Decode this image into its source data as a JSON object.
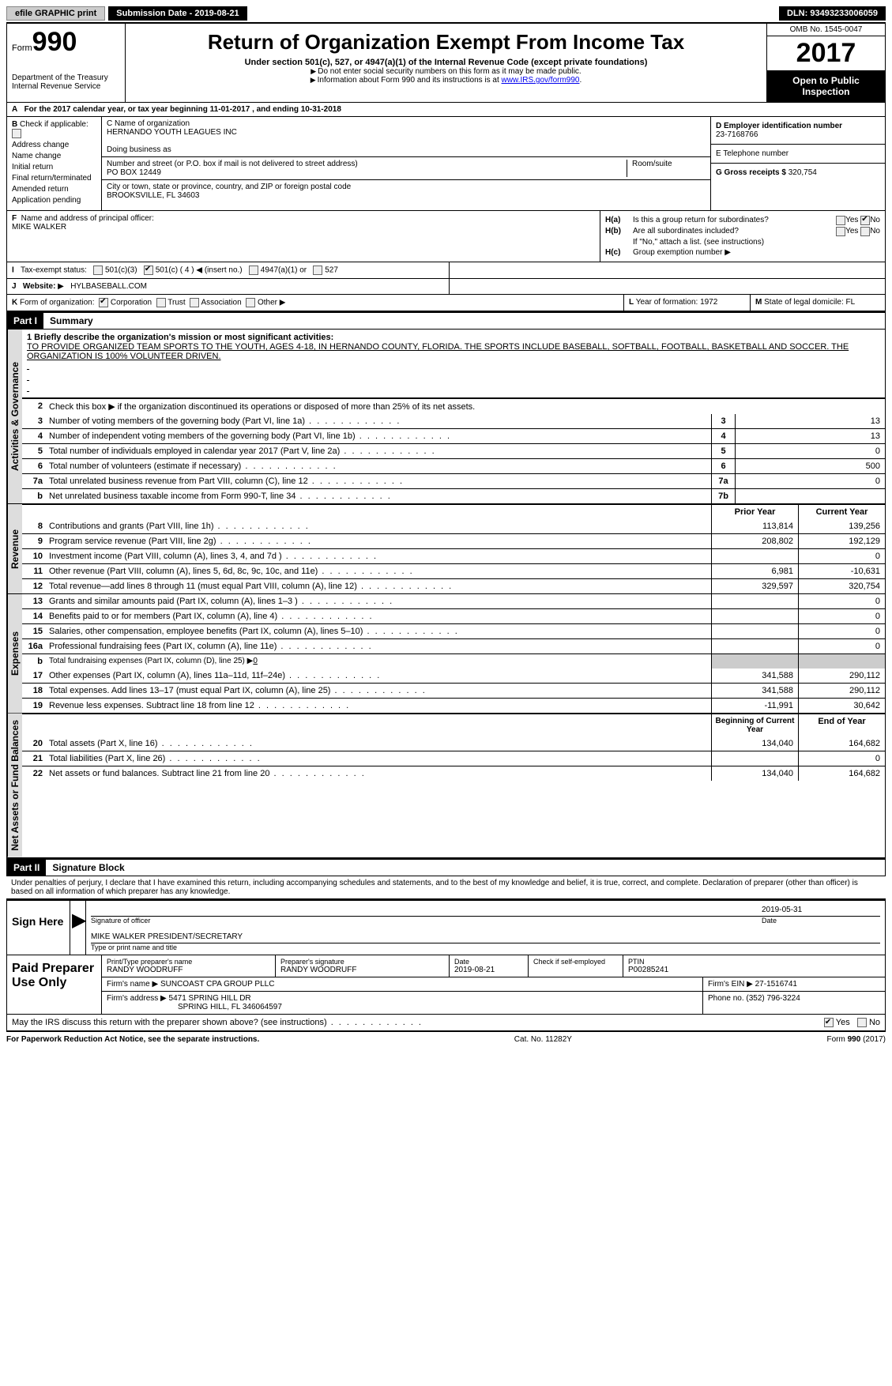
{
  "topbar": {
    "efile": "efile GRAPHIC print",
    "submission_label": "Submission Date - ",
    "submission_date": "2019-08-21",
    "dln_label": "DLN: ",
    "dln": "93493233006059"
  },
  "header": {
    "form_word": "Form",
    "form_number": "990",
    "dept": "Department of the Treasury",
    "irs": "Internal Revenue Service",
    "title": "Return of Organization Exempt From Income Tax",
    "subtitle": "Under section 501(c), 527, or 4947(a)(1) of the Internal Revenue Code (except private foundations)",
    "note1": "Do not enter social security numbers on this form as it may be made public.",
    "note2": "Information about Form 990 and its instructions is at ",
    "note2_link": "www.IRS.gov/form990",
    "omb": "OMB No. 1545-0047",
    "year": "2017",
    "open": "Open to Public Inspection"
  },
  "lineA": {
    "label": "A",
    "text_prefix": "For the 2017 calendar year, or tax year beginning ",
    "begin": "11-01-2017",
    "text_mid": " , and ending ",
    "end": "10-31-2018"
  },
  "sectionB": {
    "label": "B",
    "check_label": "Check if applicable:",
    "items": [
      "Address change",
      "Name change",
      "Initial return",
      "Final return/terminated",
      "Amended return",
      "Application pending"
    ]
  },
  "sectionC": {
    "name_label": "C Name of organization",
    "name": "HERNANDO YOUTH LEAGUES INC",
    "dba_label": "Doing business as",
    "dba": "",
    "street_label": "Number and street (or P.O. box if mail is not delivered to street address)",
    "room_label": "Room/suite",
    "street": "PO BOX 12449",
    "city_label": "City or town, state or province, country, and ZIP or foreign postal code",
    "city": "BROOKSVILLE, FL  34603"
  },
  "sectionD": {
    "label": "D Employer identification number",
    "ein": "23-7168766"
  },
  "sectionE": {
    "label": "E Telephone number",
    "phone": ""
  },
  "sectionG": {
    "label": "G Gross receipts $ ",
    "amount": "320,754"
  },
  "sectionF": {
    "label": "F",
    "text": "Name and address of principal officer:",
    "name": "MIKE WALKER"
  },
  "sectionH": {
    "a_label": "H(a)",
    "a_text": "Is this a group return for subordinates?",
    "a_yes": "Yes",
    "a_no": "No",
    "b_label": "H(b)",
    "b_text": "Are all subordinates included?",
    "b_note": "If \"No,\" attach a list. (see instructions)",
    "c_label": "H(c)",
    "c_text": "Group exemption number",
    "arrow": "▶"
  },
  "sectionI": {
    "label": "I",
    "text": "Tax-exempt status:",
    "opt1": "501(c)(3)",
    "opt2_a": "501(c) ( 4 )",
    "opt2_b": "(insert no.)",
    "opt3": "4947(a)(1) or",
    "opt4": "527"
  },
  "sectionJ": {
    "label": "J",
    "text": "Website:",
    "url": "HYLBASEBALL.COM"
  },
  "sectionK": {
    "label": "K",
    "text": "Form of organization:",
    "opts": [
      "Corporation",
      "Trust",
      "Association",
      "Other"
    ]
  },
  "sectionL": {
    "label": "L",
    "text": "Year of formation: ",
    "year": "1972"
  },
  "sectionM": {
    "label": "M",
    "text": "State of legal domicile: ",
    "state": "FL"
  },
  "part1": {
    "header": "Part I",
    "title": "Summary",
    "tab_gov": "Activities & Governance",
    "tab_rev": "Revenue",
    "tab_exp": "Expenses",
    "tab_net": "Net Assets or Fund Balances",
    "mission_label": "1   Briefly describe the organization's mission or most significant activities:",
    "mission": "TO PROVIDE ORGANIZED TEAM SPORTS TO THE YOUTH, AGES 4-18, IN HERNANDO COUNTY, FLORIDA. THE SPORTS INCLUDE BASEBALL, SOFTBALL, FOOTBALL, BASKETBALL AND SOCCER. THE ORGANIZATION IS 100% VOLUNTEER DRIVEN.",
    "line2": "Check this box ▶     if the organization discontinued its operations or disposed of more than 25% of its net assets.",
    "gov_lines": [
      {
        "n": "3",
        "desc": "Number of voting members of the governing body (Part VI, line 1a)",
        "box": "3",
        "val": "13"
      },
      {
        "n": "4",
        "desc": "Number of independent voting members of the governing body (Part VI, line 1b)",
        "box": "4",
        "val": "13"
      },
      {
        "n": "5",
        "desc": "Total number of individuals employed in calendar year 2017 (Part V, line 2a)",
        "box": "5",
        "val": "0"
      },
      {
        "n": "6",
        "desc": "Total number of volunteers (estimate if necessary)",
        "box": "6",
        "val": "500"
      },
      {
        "n": "7a",
        "desc": "Total unrelated business revenue from Part VIII, column (C), line 12",
        "box": "7a",
        "val": "0"
      },
      {
        "n": "b",
        "desc": "Net unrelated business taxable income from Form 990-T, line 34",
        "box": "7b",
        "val": ""
      }
    ],
    "col_prior": "Prior Year",
    "col_current": "Current Year",
    "rev_lines": [
      {
        "n": "8",
        "desc": "Contributions and grants (Part VIII, line 1h)",
        "prior": "113,814",
        "curr": "139,256"
      },
      {
        "n": "9",
        "desc": "Program service revenue (Part VIII, line 2g)",
        "prior": "208,802",
        "curr": "192,129"
      },
      {
        "n": "10",
        "desc": "Investment income (Part VIII, column (A), lines 3, 4, and 7d )",
        "prior": "",
        "curr": "0"
      },
      {
        "n": "11",
        "desc": "Other revenue (Part VIII, column (A), lines 5, 6d, 8c, 9c, 10c, and 11e)",
        "prior": "6,981",
        "curr": "-10,631"
      },
      {
        "n": "12",
        "desc": "Total revenue—add lines 8 through 11 (must equal Part VIII, column (A), line 12)",
        "prior": "329,597",
        "curr": "320,754"
      }
    ],
    "exp_lines": [
      {
        "n": "13",
        "desc": "Grants and similar amounts paid (Part IX, column (A), lines 1–3 )",
        "prior": "",
        "curr": "0"
      },
      {
        "n": "14",
        "desc": "Benefits paid to or for members (Part IX, column (A), line 4)",
        "prior": "",
        "curr": "0"
      },
      {
        "n": "15",
        "desc": "Salaries, other compensation, employee benefits (Part IX, column (A), lines 5–10)",
        "prior": "",
        "curr": "0"
      },
      {
        "n": "16a",
        "desc": "Professional fundraising fees (Part IX, column (A), line 11e)",
        "prior": "",
        "curr": "0"
      }
    ],
    "line16b": {
      "n": "b",
      "desc": "Total fundraising expenses (Part IX, column (D), line 25) ▶",
      "val": "0"
    },
    "exp_lines2": [
      {
        "n": "17",
        "desc": "Other expenses (Part IX, column (A), lines 11a–11d, 11f–24e)",
        "prior": "341,588",
        "curr": "290,112"
      },
      {
        "n": "18",
        "desc": "Total expenses. Add lines 13–17 (must equal Part IX, column (A), line 25)",
        "prior": "341,588",
        "curr": "290,112"
      },
      {
        "n": "19",
        "desc": "Revenue less expenses. Subtract line 18 from line 12",
        "prior": "-11,991",
        "curr": "30,642"
      }
    ],
    "col_begin": "Beginning of Current Year",
    "col_end": "End of Year",
    "net_lines": [
      {
        "n": "20",
        "desc": "Total assets (Part X, line 16)",
        "prior": "134,040",
        "curr": "164,682"
      },
      {
        "n": "21",
        "desc": "Total liabilities (Part X, line 26)",
        "prior": "",
        "curr": "0"
      },
      {
        "n": "22",
        "desc": "Net assets or fund balances. Subtract line 21 from line 20",
        "prior": "134,040",
        "curr": "164,682"
      }
    ]
  },
  "part2": {
    "header": "Part II",
    "title": "Signature Block",
    "declaration": "Under penalties of perjury, I declare that I have examined this return, including accompanying schedules and statements, and to the best of my knowledge and belief, it is true, correct, and complete. Declaration of preparer (other than officer) is based on all information of which preparer has any knowledge.",
    "sign_here": "Sign Here",
    "sig_officer": "Signature of officer",
    "sig_date_label": "Date",
    "sig_date": "2019-05-31",
    "officer_name": "MIKE WALKER  PRESIDENT/SECRETARY",
    "type_label": "Type or print name and title"
  },
  "preparer": {
    "label": "Paid Preparer Use Only",
    "name_label": "Print/Type preparer's name",
    "name": "RANDY WOODRUFF",
    "sig_label": "Preparer's signature",
    "sig": "RANDY WOODRUFF",
    "date_label": "Date",
    "date": "2019-08-21",
    "check_label": "Check       if self-employed",
    "ptin_label": "PTIN",
    "ptin": "P00285241",
    "firm_name_label": "Firm's name    ▶",
    "firm_name": "SUNCOAST CPA GROUP PLLC",
    "firm_ein_label": "Firm's EIN ▶",
    "firm_ein": "27-1516741",
    "firm_addr_label": "Firm's address ▶",
    "firm_addr1": "5471 SPRING HILL DR",
    "firm_addr2": "SPRING HILL, FL  346064597",
    "phone_label": "Phone no. ",
    "phone": "(352) 796-3224"
  },
  "discuss": {
    "text": "May the IRS discuss this return with the preparer shown above? (see instructions)",
    "yes": "Yes",
    "no": "No"
  },
  "footer": {
    "pra": "For Paperwork Reduction Act Notice, see the separate instructions.",
    "cat": "Cat. No. 11282Y",
    "form": "Form 990 (2017)"
  }
}
